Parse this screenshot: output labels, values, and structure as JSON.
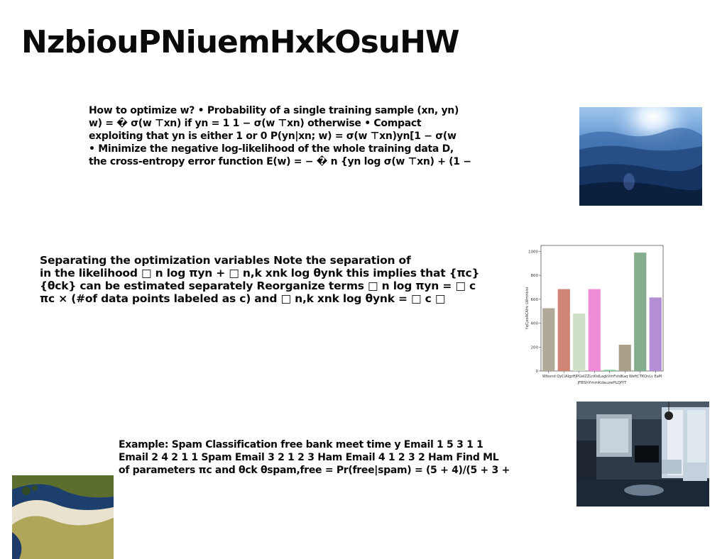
{
  "slide": {
    "title": "NzbiouPNiuemHxkOsuHW",
    "block1": [
      "How to optimize w? • Probability of a single training sample (xn, yn)",
      "w) = � σ(w ⊤xn) if yn = 1 1 − σ(w ⊤xn) otherwise • Compact",
      "exploiting that yn is either 1 or 0 P(yn|xn; w) = σ(w ⊤xn)yn[1 − σ(w",
      "• Minimize the negative log-likelihood of the whole training data D,",
      "the cross-entropy error function E(w) = − � n {yn log σ(w ⊤xn) + (1 −"
    ],
    "block2": [
      "Separating the optimization variables Note the separation of",
      "in the likelihood □ n log πyn + □ n,k xnk log θynk this implies that {πc}",
      "{θck} can be estimated separately Reorganize terms □ n log πyn = □ c",
      "πc × (#of data points labeled as c) and □ n,k xnk log θynk = □ c □"
    ],
    "block3": [
      "Example: Spam Classification free bank meet time y Email 1 5 3 1 1",
      "Email 2 4 2 1 1 Spam Email 3 2 1 2 3 Ham Email 4 1 2 3 2 Ham Find ML",
      "of parameters πc and θck θspam,free = Pr(free|spam) = (5 + 4)/(5 + 3 +"
    ]
  },
  "images": {
    "forest": "forest-photo",
    "room": "living-room-photo",
    "beach": "beach-aerial-photo"
  },
  "chart_data": {
    "type": "bar",
    "categories": [
      "Wlbxnd",
      "QyCiAI",
      "gzHJPGe",
      "ZLnKid",
      "LagkVmF",
      "stdKaq",
      "WeftCTK",
      "QnLv EaM"
    ],
    "tick_labels": [
      "Wlbxnd",
      "QyCiAIgzHJPGeIZZLnKidLagkVmFstdKaq",
      "WeftCTKQnLv",
      "EaM"
    ],
    "values": [
      525,
      685,
      480,
      685,
      10,
      220,
      990,
      615
    ],
    "colors": [
      "#b0a898",
      "#cf8474",
      "#cfe0c8",
      "#ee8cd8",
      "#7fcf95",
      "#a8a088",
      "#84ad8e",
      "#b48fd6"
    ],
    "xlabel": "jFBShYmmKdauzePLQfYT",
    "ylabel": "YqCjeoACAHc LWmhbist",
    "ylim": [
      0,
      1050
    ],
    "yticks": [
      0,
      200,
      400,
      600,
      800,
      1000
    ]
  }
}
